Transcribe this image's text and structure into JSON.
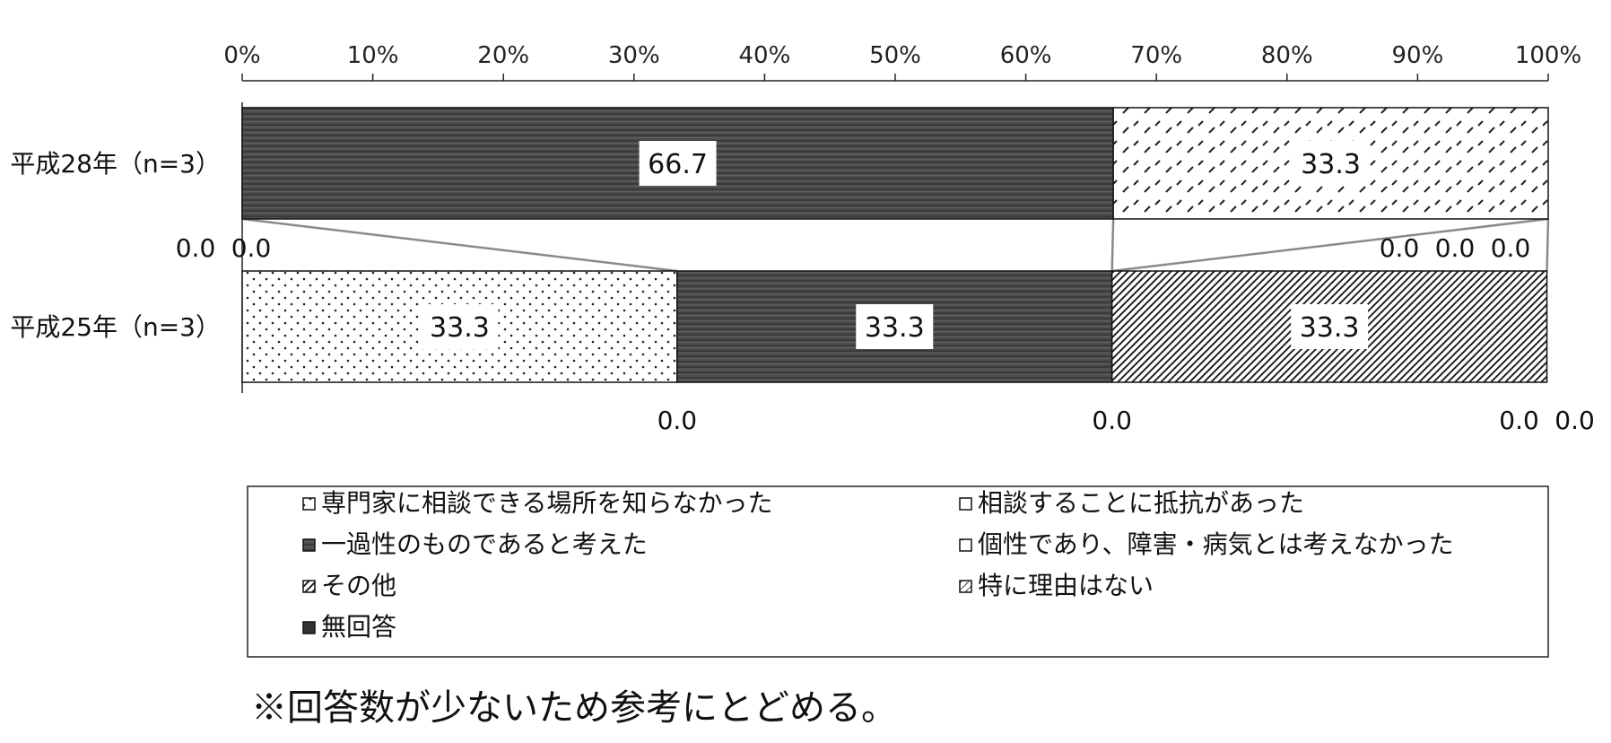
{
  "chart_data": {
    "type": "bar",
    "orientation": "horizontal",
    "stacked": "percent",
    "categories": [
      "平成28年（n=3）",
      "平成25年（n=3）"
    ],
    "xlim": [
      0,
      100
    ],
    "x_ticks": [
      "0%",
      "10%",
      "20%",
      "30%",
      "40%",
      "50%",
      "60%",
      "70%",
      "80%",
      "90%",
      "100%"
    ],
    "grid": false,
    "legend_position": "bottom",
    "series": [
      {
        "name": "専門家に相談できる場所を知らなかった",
        "values": [
          0.0,
          33.3
        ],
        "pattern": "dots",
        "color": "#ffffff"
      },
      {
        "name": "相談することに抵抗があった",
        "values": [
          0.0,
          0.0
        ],
        "pattern": "blank",
        "color": "#ffffff"
      },
      {
        "name": "一過性のものであると考えた",
        "values": [
          66.7,
          33.3
        ],
        "pattern": "dark-stripes",
        "color": "#4a4a4a"
      },
      {
        "name": "個性であり、障害・病気とは考えなかった",
        "values": [
          33.3,
          0.0
        ],
        "pattern": "dashes",
        "color": "#ffffff"
      },
      {
        "name": "その他",
        "values": [
          0.0,
          33.3
        ],
        "pattern": "diagonal",
        "color": "#ffffff"
      },
      {
        "name": "特に理由はない",
        "values": [
          0.0,
          0.0
        ],
        "pattern": "diagonal-light",
        "color": "#ffffff"
      },
      {
        "name": "無回答",
        "values": [
          0.0,
          0.0
        ],
        "pattern": "dark",
        "color": "#333333"
      }
    ],
    "data_labels": [
      {
        "row": 0,
        "series": 2,
        "text": "66.7"
      },
      {
        "row": 0,
        "series": 3,
        "text": "33.3"
      },
      {
        "row": 0,
        "series": 0,
        "text": "0.0"
      },
      {
        "row": 0,
        "series": 1,
        "text": "0.0"
      },
      {
        "row": 0,
        "series": 4,
        "text": "0.0"
      },
      {
        "row": 0,
        "series": 5,
        "text": "0.0"
      },
      {
        "row": 0,
        "series": 6,
        "text": "0.0"
      },
      {
        "row": 1,
        "series": 0,
        "text": "33.3"
      },
      {
        "row": 1,
        "series": 2,
        "text": "33.3"
      },
      {
        "row": 1,
        "series": 4,
        "text": "33.3"
      },
      {
        "row": 1,
        "series": 1,
        "text": "0.0"
      },
      {
        "row": 1,
        "series": 3,
        "text": "0.0"
      },
      {
        "row": 1,
        "series": 5,
        "text": "0.0"
      },
      {
        "row": 1,
        "series": 6,
        "text": "0.0"
      }
    ]
  },
  "legend_items": [
    "専門家に相談できる場所を知らなかった",
    "相談することに抵抗があった",
    "一過性のものであると考えた",
    "個性であり、障害・病気とは考えなかった",
    "その他",
    "特に理由はない",
    "無回答"
  ],
  "note": "※回答数が少ないため参考にとどめる。"
}
